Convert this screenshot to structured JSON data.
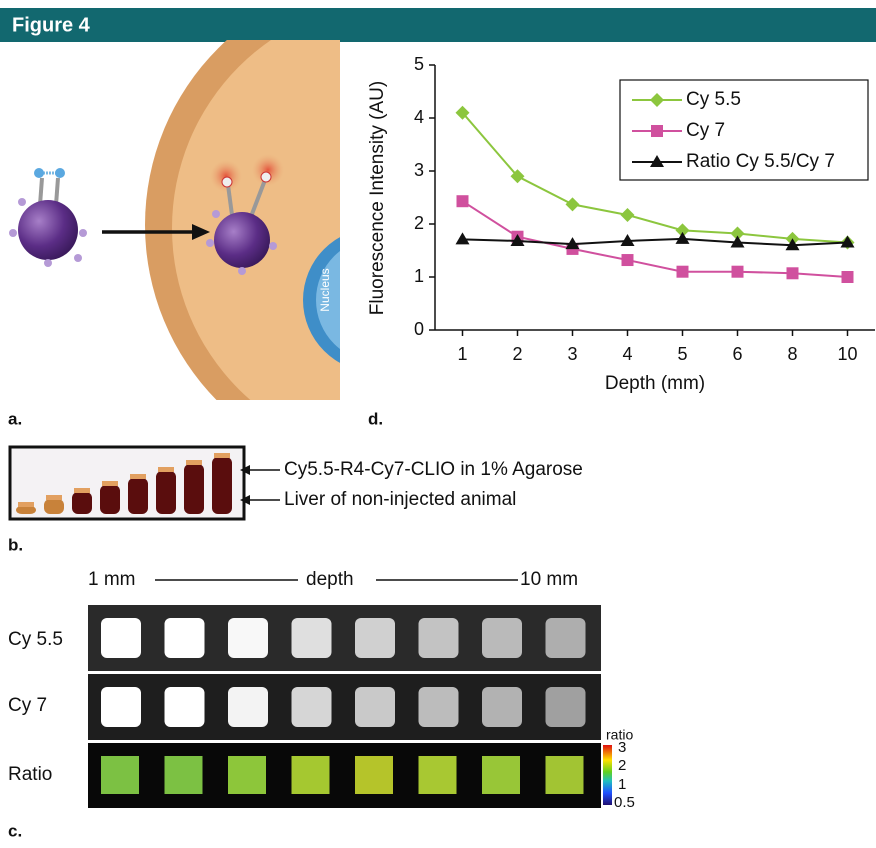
{
  "header": {
    "title": "Figure 4"
  },
  "panels": {
    "a": {
      "label": "a.",
      "nucleus": "Nucleus"
    },
    "b": {
      "label": "b.",
      "annotations": [
        "Cy5.5-R4-Cy7-CLIO in 1% Agarose",
        "Liver of non-injected animal"
      ]
    },
    "c": {
      "label": "c.",
      "depth_start": "1 mm",
      "depth_middle": "depth",
      "depth_end": "10 mm",
      "rows": [
        "Cy 5.5",
        "Cy 7",
        "Ratio"
      ],
      "colorbar": {
        "title": "ratio",
        "ticks": [
          "3",
          "2",
          "1",
          "0.5"
        ]
      }
    },
    "d": {
      "label": "d."
    }
  },
  "chart_data": {
    "type": "line",
    "x_label": "Depth (mm)",
    "y_label": "Fluorescence Intensity (AU)",
    "categories": [
      "1",
      "2",
      "3",
      "4",
      "5",
      "6",
      "8",
      "10"
    ],
    "series": [
      {
        "name": "Cy 5.5",
        "color": "#8cc63e",
        "marker": "diamond",
        "values": [
          4.1,
          2.9,
          2.37,
          2.17,
          1.88,
          1.82,
          1.72,
          1.65
        ]
      },
      {
        "name": "Cy 7",
        "color": "#d0509e",
        "marker": "square",
        "values": [
          2.43,
          1.76,
          1.53,
          1.32,
          1.1,
          1.1,
          1.07,
          1.0
        ]
      },
      {
        "name": "Ratio Cy 5.5/Cy 7",
        "color": "#111111",
        "marker": "triangle",
        "values": [
          1.71,
          1.68,
          1.62,
          1.68,
          1.72,
          1.65,
          1.6,
          1.65
        ]
      }
    ],
    "ylim": [
      0,
      5
    ],
    "yticks": [
      0,
      1,
      2,
      3,
      4,
      5
    ],
    "grid": false,
    "legend": "upper right"
  }
}
